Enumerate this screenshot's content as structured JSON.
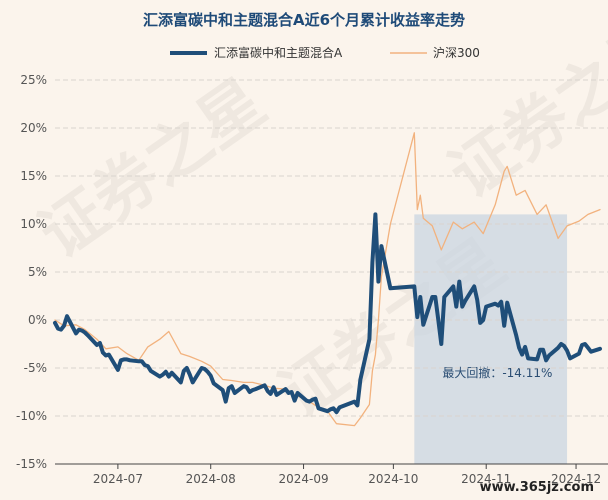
{
  "chart_data": {
    "type": "line",
    "title": "汇添富碳中和主题混合A近6个月累计收益率走势",
    "ylim": [
      -15,
      25
    ],
    "y_ticks": [
      "25%",
      "20%",
      "15%",
      "10%",
      "5%",
      "0%",
      "-5%",
      "-10%",
      "-15%"
    ],
    "y_tick_values": [
      25,
      20,
      15,
      10,
      5,
      0,
      -5,
      -10,
      -15
    ],
    "x_range": [
      "2024-06-10",
      "2024-12-09"
    ],
    "x_ticks": [
      "2024-07",
      "2024-08",
      "2024-09",
      "2024-10",
      "2024-11",
      "2024-12"
    ],
    "grid": "horizontal dashed",
    "legend_position": "top-center",
    "colors": {
      "fund": "#1f4e79",
      "index": "#f2b27e",
      "drawdown": "#c9d6e2",
      "background": "#fbf4ec"
    },
    "series": [
      {
        "name": "汇添富碳中和主题混合A",
        "x": [
          "2024-06-10",
          "2024-06-11",
          "2024-06-12",
          "2024-06-13",
          "2024-06-14",
          "2024-06-17",
          "2024-06-18",
          "2024-06-19",
          "2024-06-20",
          "2024-06-21",
          "2024-06-24",
          "2024-06-25",
          "2024-06-26",
          "2024-06-27",
          "2024-06-28",
          "2024-07-01",
          "2024-07-02",
          "2024-07-03",
          "2024-07-04",
          "2024-07-05",
          "2024-07-08",
          "2024-07-09",
          "2024-07-10",
          "2024-07-11",
          "2024-07-12",
          "2024-07-15",
          "2024-07-16",
          "2024-07-17",
          "2024-07-18",
          "2024-07-19",
          "2024-07-22",
          "2024-07-23",
          "2024-07-24",
          "2024-07-25",
          "2024-07-26",
          "2024-07-29",
          "2024-07-30",
          "2024-07-31",
          "2024-08-01",
          "2024-08-02",
          "2024-08-05",
          "2024-08-06",
          "2024-08-07",
          "2024-08-08",
          "2024-08-09",
          "2024-08-12",
          "2024-08-13",
          "2024-08-14",
          "2024-08-15",
          "2024-08-16",
          "2024-08-19",
          "2024-08-20",
          "2024-08-21",
          "2024-08-22",
          "2024-08-23",
          "2024-08-26",
          "2024-08-27",
          "2024-08-28",
          "2024-08-29",
          "2024-08-30",
          "2024-09-02",
          "2024-09-03",
          "2024-09-04",
          "2024-09-05",
          "2024-09-06",
          "2024-09-09",
          "2024-09-10",
          "2024-09-11",
          "2024-09-12",
          "2024-09-13",
          "2024-09-18",
          "2024-09-19",
          "2024-09-20",
          "2024-09-23",
          "2024-09-24",
          "2024-09-25",
          "2024-09-26",
          "2024-09-27",
          "2024-09-30",
          "2024-10-08",
          "2024-10-09",
          "2024-10-10",
          "2024-10-11",
          "2024-10-14",
          "2024-10-15",
          "2024-10-16",
          "2024-10-17",
          "2024-10-18",
          "2024-10-21",
          "2024-10-22",
          "2024-10-23",
          "2024-10-24",
          "2024-10-25",
          "2024-10-28",
          "2024-10-29",
          "2024-10-30",
          "2024-10-31",
          "2024-11-01",
          "2024-11-04",
          "2024-11-05",
          "2024-11-06",
          "2024-11-07",
          "2024-11-08",
          "2024-11-11",
          "2024-11-12",
          "2024-11-13",
          "2024-11-14",
          "2024-11-15",
          "2024-11-18",
          "2024-11-19",
          "2024-11-20",
          "2024-11-21",
          "2024-11-22",
          "2024-11-25",
          "2024-11-26",
          "2024-11-27",
          "2024-11-28",
          "2024-11-29",
          "2024-12-02",
          "2024-12-03",
          "2024-12-04",
          "2024-12-05",
          "2024-12-06",
          "2024-12-09"
        ],
        "values": [
          -0.3,
          -0.9,
          -1.0,
          -0.6,
          0.4,
          -1.4,
          -1.0,
          -1.1,
          -1.3,
          -1.6,
          -2.6,
          -2.4,
          -3.4,
          -3.7,
          -3.6,
          -5.2,
          -4.2,
          -4.1,
          -4.1,
          -4.2,
          -4.3,
          -4.3,
          -4.7,
          -4.8,
          -5.3,
          -5.9,
          -5.7,
          -5.4,
          -5.9,
          -5.5,
          -6.5,
          -5.3,
          -5.0,
          -5.7,
          -6.5,
          -5.0,
          -5.1,
          -5.4,
          -5.8,
          -6.6,
          -7.3,
          -8.5,
          -7.1,
          -6.9,
          -7.6,
          -6.9,
          -7.0,
          -7.5,
          -7.3,
          -7.2,
          -6.8,
          -7.4,
          -7.7,
          -7.0,
          -7.8,
          -7.2,
          -7.6,
          -7.5,
          -8.4,
          -7.6,
          -8.4,
          -8.5,
          -8.3,
          -8.2,
          -9.2,
          -9.5,
          -9.3,
          -9.2,
          -9.6,
          -9.1,
          -8.5,
          -8.9,
          -6.2,
          -2.0,
          6.0,
          11.0,
          4.0,
          7.7,
          3.3,
          3.5,
          0.3,
          2.4,
          -0.5,
          2.4,
          2.4,
          0.0,
          -2.5,
          2.4,
          3.5,
          1.4,
          4.0,
          1.4,
          2.0,
          3.5,
          2.1,
          -0.3,
          0.0,
          1.4,
          1.7,
          1.5,
          1.9,
          -0.6,
          1.8,
          -1.6,
          -2.9,
          -3.6,
          -2.8,
          -4.0,
          -4.1,
          -3.1,
          -3.1,
          -4.2,
          -3.7,
          -2.9,
          -2.5,
          -2.7,
          -3.2,
          -4.0,
          -3.5,
          -2.6,
          -2.5,
          -2.9,
          -3.3,
          -3.0
        ],
        "color": "#1f4e79"
      },
      {
        "name": "沪深300",
        "x": [
          "2024-06-10",
          "2024-06-13",
          "2024-06-17",
          "2024-06-20",
          "2024-06-24",
          "2024-06-27",
          "2024-07-01",
          "2024-07-04",
          "2024-07-08",
          "2024-07-11",
          "2024-07-15",
          "2024-07-18",
          "2024-07-22",
          "2024-07-25",
          "2024-07-29",
          "2024-08-01",
          "2024-08-05",
          "2024-08-08",
          "2024-08-12",
          "2024-08-15",
          "2024-08-19",
          "2024-08-22",
          "2024-08-26",
          "2024-08-29",
          "2024-09-02",
          "2024-09-05",
          "2024-09-09",
          "2024-09-12",
          "2024-09-18",
          "2024-09-20",
          "2024-09-23",
          "2024-09-24",
          "2024-09-25",
          "2024-09-26",
          "2024-09-27",
          "2024-09-30",
          "2024-10-08",
          "2024-10-09",
          "2024-10-10",
          "2024-10-11",
          "2024-10-14",
          "2024-10-17",
          "2024-10-21",
          "2024-10-24",
          "2024-10-28",
          "2024-10-31",
          "2024-11-04",
          "2024-11-07",
          "2024-11-08",
          "2024-11-11",
          "2024-11-14",
          "2024-11-18",
          "2024-11-21",
          "2024-11-25",
          "2024-11-28",
          "2024-12-02",
          "2024-12-05",
          "2024-12-09"
        ],
        "values": [
          0.0,
          -0.6,
          -0.5,
          -1.0,
          -2.0,
          -3.0,
          -2.8,
          -3.5,
          -4.2,
          -2.8,
          -2.0,
          -1.2,
          -3.5,
          -3.8,
          -4.3,
          -4.8,
          -6.2,
          -6.3,
          -6.5,
          -6.5,
          -6.8,
          -7.1,
          -7.2,
          -7.8,
          -8.3,
          -8.9,
          -9.5,
          -10.8,
          -11.0,
          -10.2,
          -8.8,
          -5.3,
          -3.6,
          0.0,
          4.5,
          10.0,
          19.5,
          11.5,
          13.0,
          10.6,
          9.8,
          7.3,
          10.2,
          9.5,
          10.2,
          9.0,
          12.0,
          15.5,
          16.0,
          13.0,
          13.5,
          11.0,
          12.0,
          8.5,
          9.8,
          10.3,
          11.0,
          11.5
        ],
        "color": "#f2b27e"
      }
    ],
    "annotation": {
      "label": "最大回撤：-14.11%",
      "start": "2024-10-08",
      "end": "2024-11-28"
    },
    "watermark": "证券之星",
    "source_text": "www.365jz.com"
  }
}
